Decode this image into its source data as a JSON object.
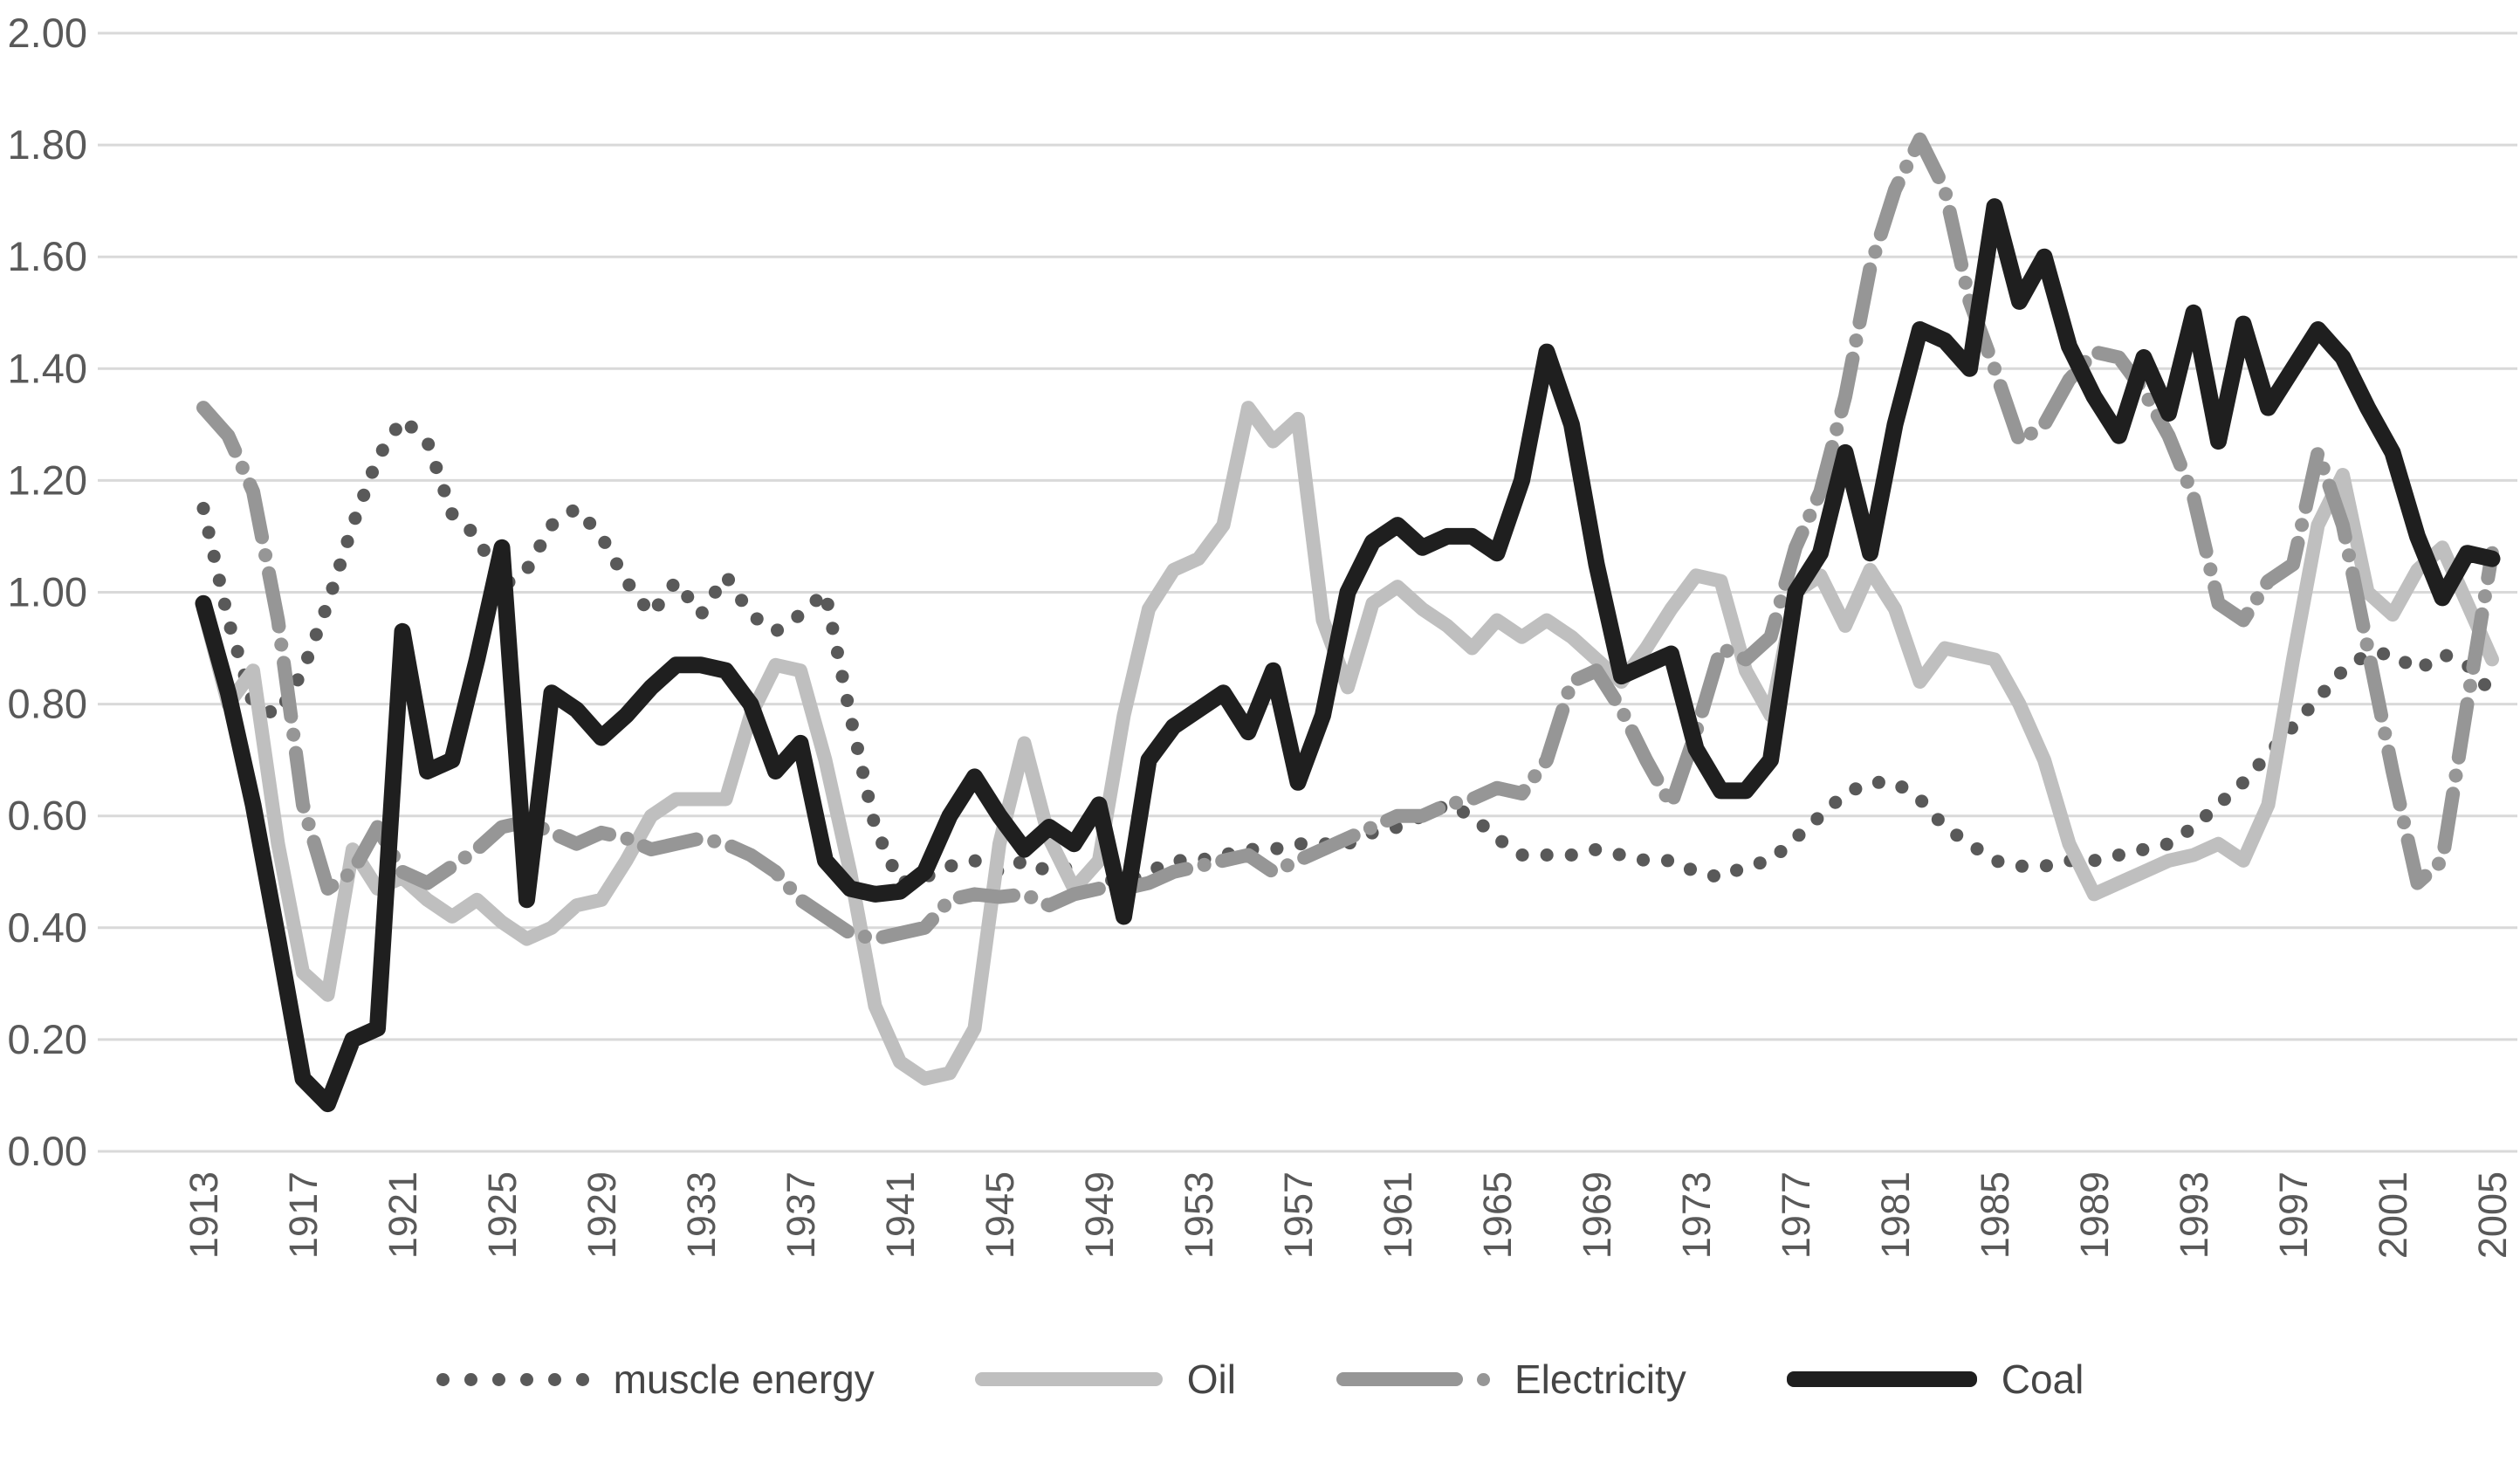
{
  "chart_data": {
    "type": "line",
    "title": "",
    "xlabel": "",
    "ylabel": "",
    "x_start_year": 1913,
    "x_end_year": 2005,
    "x_step_years": 1,
    "ylim": [
      0.0,
      2.0
    ],
    "y_tick_interval": 0.2,
    "grid": "horizontal",
    "legend_position": "bottom",
    "y_tick_labels": [
      "0.00",
      "0.20",
      "0.40",
      "0.60",
      "0.80",
      "1.00",
      "1.20",
      "1.40",
      "1.60",
      "1.80",
      "2.00"
    ],
    "x_tick_labels": [
      "1913",
      "1917",
      "1921",
      "1925",
      "1929",
      "1933",
      "1937",
      "1941",
      "1945",
      "1949",
      "1953",
      "1957",
      "1961",
      "1965",
      "1969",
      "1973",
      "1977",
      "1981",
      "1985",
      "1989",
      "1993",
      "1997",
      "2001",
      "2005"
    ],
    "series": [
      {
        "name": "muscle energy",
        "style": "dotted",
        "color": "#595959",
        "values": [
          1.15,
          0.95,
          0.8,
          0.78,
          0.86,
          0.98,
          1.12,
          1.24,
          1.31,
          1.27,
          1.14,
          1.1,
          1.01,
          1.04,
          1.12,
          1.15,
          1.1,
          1.02,
          0.96,
          1.02,
          0.96,
          1.03,
          0.96,
          0.93,
          0.96,
          1.0,
          0.78,
          0.58,
          0.48,
          0.49,
          0.51,
          0.52,
          0.5,
          0.52,
          0.5,
          0.51,
          0.49,
          0.48,
          0.5,
          0.52,
          0.52,
          0.53,
          0.54,
          0.54,
          0.55,
          0.55,
          0.55,
          0.57,
          0.58,
          0.6,
          0.62,
          0.6,
          0.56,
          0.53,
          0.53,
          0.53,
          0.54,
          0.53,
          0.52,
          0.52,
          0.5,
          0.49,
          0.51,
          0.52,
          0.56,
          0.6,
          0.64,
          0.66,
          0.66,
          0.63,
          0.58,
          0.55,
          0.52,
          0.51,
          0.51,
          0.52,
          0.52,
          0.53,
          0.54,
          0.55,
          0.58,
          0.62,
          0.66,
          0.71,
          0.76,
          0.81,
          0.86,
          0.89,
          0.89,
          0.86,
          0.89,
          0.87,
          0.82
        ]
      },
      {
        "name": "Oil",
        "style": "solid",
        "color": "#bfbfbf",
        "values": [
          0.97,
          0.8,
          0.86,
          0.55,
          0.32,
          0.28,
          0.54,
          0.47,
          0.49,
          0.45,
          0.42,
          0.45,
          0.41,
          0.38,
          0.4,
          0.44,
          0.45,
          0.52,
          0.6,
          0.63,
          0.63,
          0.63,
          0.78,
          0.87,
          0.86,
          0.7,
          0.5,
          0.26,
          0.16,
          0.13,
          0.14,
          0.22,
          0.55,
          0.73,
          0.56,
          0.47,
          0.52,
          0.78,
          0.97,
          1.04,
          1.06,
          1.12,
          1.33,
          1.27,
          1.31,
          0.95,
          0.83,
          0.98,
          1.01,
          0.97,
          0.94,
          0.9,
          0.95,
          0.92,
          0.95,
          0.92,
          0.88,
          0.84,
          0.9,
          0.97,
          1.03,
          1.02,
          0.86,
          0.78,
          1.0,
          1.03,
          0.94,
          1.04,
          0.97,
          0.84,
          0.9,
          0.89,
          0.88,
          0.8,
          0.7,
          0.55,
          0.46,
          0.48,
          0.5,
          0.52,
          0.53,
          0.55,
          0.52,
          0.62,
          0.88,
          1.12,
          1.21,
          1.0,
          0.96,
          1.04,
          1.08,
          0.98,
          0.88
        ]
      },
      {
        "name": "Electricity",
        "style": "dash-dot",
        "color": "#969696",
        "values": [
          1.33,
          1.28,
          1.18,
          0.95,
          0.62,
          0.47,
          0.5,
          0.58,
          0.5,
          0.48,
          0.51,
          0.54,
          0.58,
          0.59,
          0.57,
          0.55,
          0.57,
          0.56,
          0.54,
          0.55,
          0.56,
          0.55,
          0.53,
          0.5,
          0.45,
          0.42,
          0.39,
          0.38,
          0.39,
          0.4,
          0.45,
          0.46,
          0.455,
          0.46,
          0.44,
          0.46,
          0.47,
          0.47,
          0.48,
          0.5,
          0.51,
          0.52,
          0.53,
          0.5,
          0.52,
          0.54,
          0.56,
          0.58,
          0.6,
          0.6,
          0.62,
          0.63,
          0.65,
          0.64,
          0.7,
          0.84,
          0.86,
          0.79,
          0.7,
          0.62,
          0.75,
          0.9,
          0.88,
          0.92,
          1.08,
          1.18,
          1.35,
          1.58,
          1.72,
          1.81,
          1.72,
          1.52,
          1.4,
          1.27,
          1.3,
          1.38,
          1.43,
          1.42,
          1.36,
          1.28,
          1.17,
          0.98,
          0.95,
          1.02,
          1.05,
          1.25,
          1.12,
          0.9,
          0.68,
          0.48,
          0.52,
          0.8,
          1.07
        ]
      },
      {
        "name": "Coal",
        "style": "solid",
        "color": "#1f1f1f",
        "values": [
          0.98,
          0.82,
          0.62,
          0.38,
          0.13,
          0.085,
          0.2,
          0.22,
          0.93,
          0.68,
          0.7,
          0.88,
          1.08,
          0.45,
          0.82,
          0.79,
          0.74,
          0.78,
          0.83,
          0.87,
          0.87,
          0.86,
          0.8,
          0.68,
          0.73,
          0.52,
          0.47,
          0.46,
          0.465,
          0.5,
          0.6,
          0.67,
          0.6,
          0.54,
          0.58,
          0.55,
          0.62,
          0.42,
          0.7,
          0.76,
          0.79,
          0.82,
          0.75,
          0.86,
          0.66,
          0.78,
          1.0,
          1.09,
          1.12,
          1.08,
          1.1,
          1.1,
          1.07,
          1.2,
          1.43,
          1.3,
          1.05,
          0.85,
          0.87,
          0.89,
          0.72,
          0.645,
          0.645,
          0.7,
          1.0,
          1.07,
          1.25,
          1.07,
          1.3,
          1.47,
          1.45,
          1.4,
          1.69,
          1.52,
          1.6,
          1.44,
          1.35,
          1.28,
          1.42,
          1.32,
          1.5,
          1.27,
          1.48,
          1.33,
          1.4,
          1.47,
          1.42,
          1.33,
          1.25,
          1.1,
          0.99,
          1.07,
          1.06
        ]
      }
    ]
  },
  "legend": [
    {
      "label": "muscle energy",
      "swatch": "dots-icon",
      "color": "#595959"
    },
    {
      "label": "Oil",
      "swatch": "line-icon",
      "color": "#bfbfbf"
    },
    {
      "label": "Electricity",
      "swatch": "dashdot-icon",
      "color": "#969696"
    },
    {
      "label": "Coal",
      "swatch": "line-icon",
      "color": "#1f1f1f"
    }
  ],
  "colors": {
    "background": "#ffffff",
    "gridline": "#d9d9d9",
    "tick_text": "#595959",
    "legend_text": "#454545"
  }
}
